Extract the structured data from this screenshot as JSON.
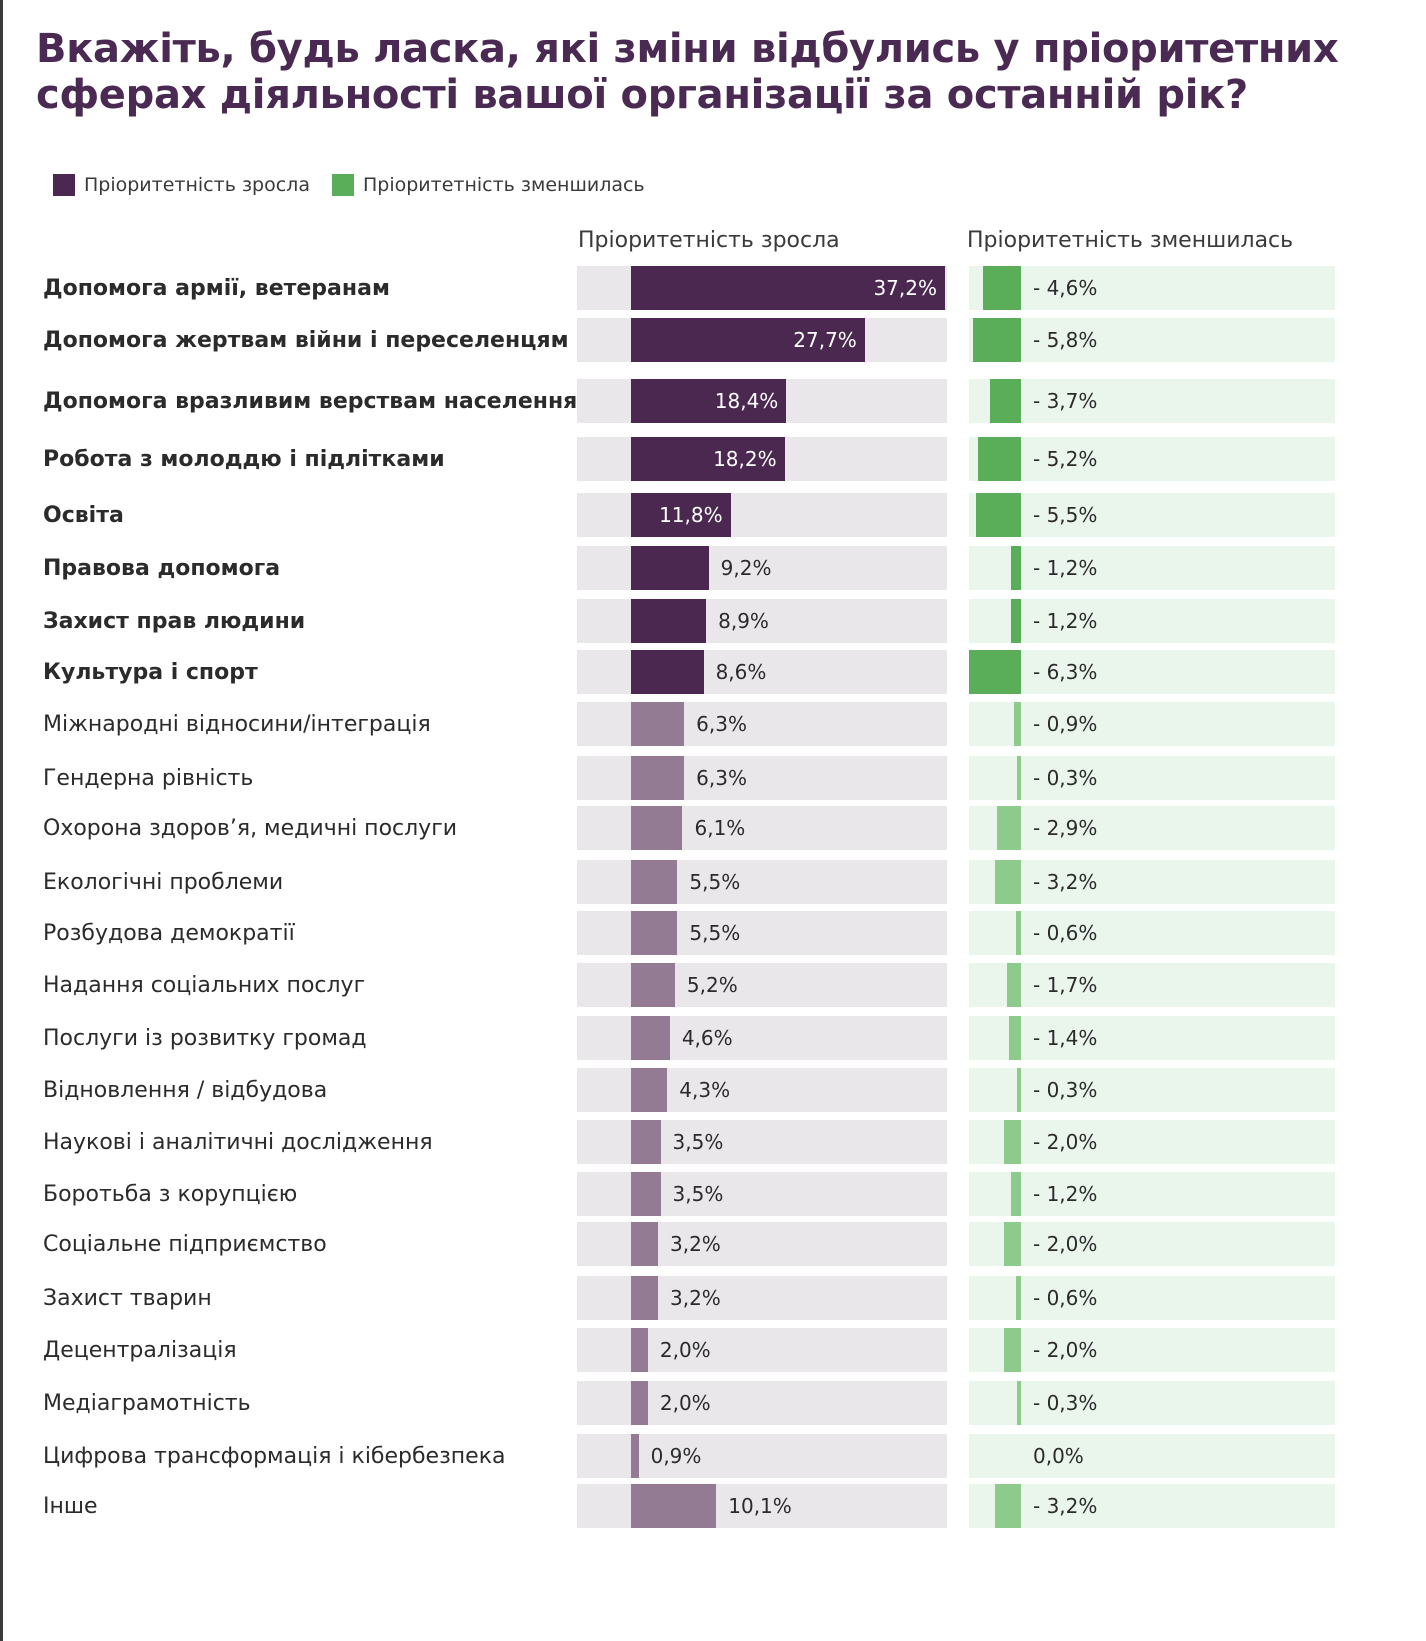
{
  "title": "Вкажіть, будь ласка, які зміни відбулись у пріоритетних сферах діяльності вашої організації за останній рік?",
  "colors": {
    "title": "#4a2a52",
    "increase_top": "#4b2850",
    "increase_other": "#937b93",
    "decrease_top": "#5aae5a",
    "decrease_other": "#8dcb8d"
  },
  "legend": [
    {
      "label": "Пріоритетність зросла",
      "color": "#4b2850"
    },
    {
      "label": "Пріоритетність зменшилась",
      "color": "#5aae5a"
    }
  ],
  "columns": {
    "increase_header": "Пріоритетність зросла",
    "decrease_header": "Пріоритетність зменшилась"
  },
  "chart_data": {
    "type": "bar",
    "title": "Вкажіть, будь ласка, які зміни відбулись у пріоритетних сферах діяльності вашої організації за останній рік?",
    "xlabel": "",
    "ylabel": "",
    "legend_position": "top-left",
    "categories": [
      "Допомога армії, ветеранам",
      "Допомога жертвам війни і переселенцям",
      "Допомога вразливим верствам населення",
      "Робота з молоддю і підлітками",
      "Освіта",
      "Правова допомога",
      "Захист прав людини",
      "Культура і спорт",
      "Міжнародні відносини/інтеграція",
      "Гендерна рівність",
      "Охорона здоров’я, медичні послуги",
      "Екологічні проблеми",
      "Розбудова демократії",
      "Надання соціальних послуг",
      "Послуги із розвитку громад",
      "Відновлення / відбудова",
      "Наукові і аналітичні дослідження",
      "Боротьба з корупцією",
      "Соціальне підприємство",
      "Захист тварин",
      "Децентралізація",
      "Медіаграмотність",
      "Цифрова трансформація і кібербезпека",
      "Інше"
    ],
    "bold_count": 8,
    "series": [
      {
        "name": "Пріоритетність зросла",
        "values": [
          37.2,
          27.7,
          18.4,
          18.2,
          11.8,
          9.2,
          8.9,
          8.6,
          6.3,
          6.3,
          6.1,
          5.5,
          5.5,
          5.2,
          4.6,
          4.3,
          3.5,
          3.5,
          3.2,
          3.2,
          2.0,
          2.0,
          0.9,
          10.1
        ],
        "labels": [
          "37,2%",
          "27,7%",
          "18,4%",
          "18,2%",
          "11,8%",
          "9,2%",
          "8,9%",
          "8,6%",
          "6,3%",
          "6,3%",
          "6,1%",
          "5,5%",
          "5,5%",
          "5,2%",
          "4,6%",
          "4,3%",
          "3,5%",
          "3,5%",
          "3,2%",
          "3,2%",
          "2,0%",
          "2,0%",
          "0,9%",
          "10,1%"
        ],
        "xlim": [
          0,
          42
        ]
      },
      {
        "name": "Пріоритетність зменшилась",
        "values": [
          -4.6,
          -5.8,
          -3.7,
          -5.2,
          -5.5,
          -1.2,
          -1.2,
          -6.3,
          -0.9,
          -0.3,
          -2.9,
          -3.2,
          -0.6,
          -1.7,
          -1.4,
          -0.3,
          -2.0,
          -1.2,
          -2.0,
          -0.6,
          -2.0,
          -0.3,
          0.0,
          -3.2
        ],
        "labels": [
          "- 4,6%",
          "- 5,8%",
          "- 3,7%",
          "- 5,2%",
          "- 5,5%",
          "- 1,2%",
          "- 1,2%",
          "- 6,3%",
          "- 0,9%",
          "- 0,3%",
          "- 2,9%",
          "- 3,2%",
          "- 0,6%",
          "- 1,7%",
          "- 1,4%",
          "- 0,3%",
          "- 2,0%",
          "- 1,2%",
          "- 2,0%",
          "- 0,6%",
          "- 2,0%",
          "- 0,3%",
          "0,0%",
          "- 3,2%"
        ],
        "xlim": [
          -6.3,
          0
        ]
      }
    ]
  }
}
